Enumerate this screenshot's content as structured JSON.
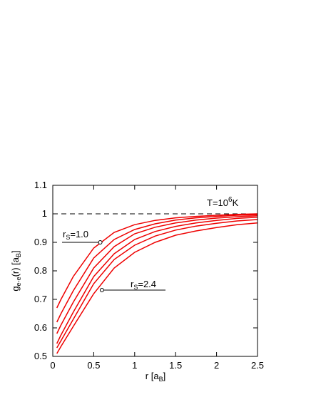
{
  "chart_data": {
    "type": "line",
    "x": [
      0.05,
      0.1,
      0.25,
      0.5,
      0.75,
      1,
      1.25,
      1.5,
      1.75,
      2,
      2.25,
      2.5
    ],
    "series": [
      {
        "color": "#ee0000",
        "values": [
          0.67,
          0.7,
          0.78,
          0.88,
          0.935,
          0.962,
          0.977,
          0.986,
          0.991,
          0.995,
          0.998,
          1.0
        ]
      },
      {
        "color": "#ee0000",
        "values": [
          0.62,
          0.65,
          0.73,
          0.845,
          0.91,
          0.945,
          0.965,
          0.978,
          0.986,
          0.991,
          0.995,
          0.997
        ]
      },
      {
        "color": "#ee0000",
        "values": [
          0.58,
          0.61,
          0.69,
          0.81,
          0.885,
          0.93,
          0.953,
          0.968,
          0.978,
          0.985,
          0.99,
          0.993
        ]
      },
      {
        "color": "#ee0000",
        "values": [
          0.545,
          0.575,
          0.655,
          0.78,
          0.86,
          0.91,
          0.938,
          0.956,
          0.968,
          0.977,
          0.984,
          0.988
        ]
      },
      {
        "color": "#ee0000",
        "values": [
          0.53,
          0.555,
          0.63,
          0.755,
          0.84,
          0.89,
          0.922,
          0.943,
          0.957,
          0.967,
          0.975,
          0.98
        ]
      },
      {
        "color": "#ee0000",
        "values": [
          0.51,
          0.535,
          0.605,
          0.72,
          0.81,
          0.865,
          0.9,
          0.925,
          0.94,
          0.952,
          0.962,
          0.968
        ]
      }
    ],
    "xlim": [
      0,
      2.5
    ],
    "ylim": [
      0.5,
      1.1
    ],
    "xticks": [
      0,
      0.5,
      1,
      1.5,
      2,
      2.5
    ],
    "yticks": [
      0.5,
      0.6,
      0.7,
      0.8,
      0.9,
      1,
      1.1
    ],
    "reference_line": 1,
    "x_label": {
      "text": "r [a",
      "sub": "B",
      "tail": "]"
    },
    "y_label": {
      "text": "g",
      "sub": "e-e",
      "mid": "(r) [a",
      "sub2": "B",
      "tail": "]"
    },
    "temperature": {
      "text": "T=10",
      "sup": "6",
      "tail": "K"
    },
    "annotations": [
      {
        "base": "r",
        "sub": "S",
        "text": "=1.0",
        "x": 0.58,
        "y": 0.9
      },
      {
        "base": "r",
        "sub": "S",
        "text": "=2.4",
        "x": 0.6,
        "y": 0.7325
      }
    ]
  }
}
